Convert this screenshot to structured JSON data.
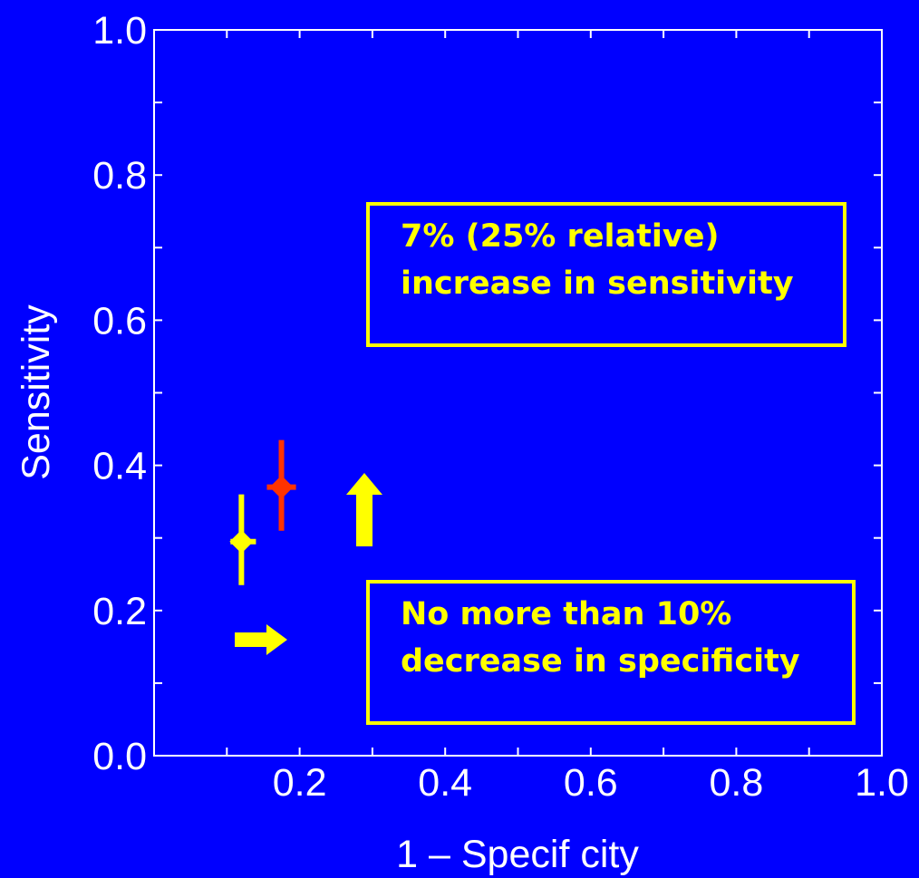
{
  "chart_data": {
    "type": "scatter",
    "title": "",
    "xlabel": "1 – Specif city",
    "ylabel": "Sensitivity",
    "xlim": [
      0.0,
      1.0
    ],
    "ylim": [
      0.0,
      1.0
    ],
    "x_ticks": [
      "0.2",
      "0.4",
      "0.6",
      "0.8",
      "1.0"
    ],
    "y_ticks": [
      "0.0",
      "0.2",
      "0.4",
      "0.6",
      "0.8",
      "1.0"
    ],
    "grid": false,
    "legend": "none",
    "points": [
      {
        "x": 0.12,
        "y": 0.295,
        "y_err": [
          0.235,
          0.36
        ],
        "x_err": [
          0.105,
          0.14
        ],
        "color": "#FFFF00",
        "marker": "diamond"
      },
      {
        "x": 0.175,
        "y": 0.37,
        "y_err": [
          0.31,
          0.435
        ],
        "x_err": [
          0.155,
          0.195
        ],
        "color": "#FF3300",
        "marker": "diamond"
      }
    ],
    "arrows": [
      {
        "direction": "up",
        "color": "#FFFF00"
      },
      {
        "direction": "right",
        "color": "#FFFF00"
      }
    ],
    "annotations": [
      {
        "lines": [
          "7% (25% relative)",
          "increase in sensitivity"
        ]
      },
      {
        "lines": [
          "No more than 10%",
          "decrease in specificity"
        ]
      }
    ]
  },
  "colors": {
    "background": "#0000FF",
    "axis": "#FFFFFF",
    "text": "#FFFFFF",
    "highlight": "#FFFF00",
    "point_new": "#FF3300"
  }
}
